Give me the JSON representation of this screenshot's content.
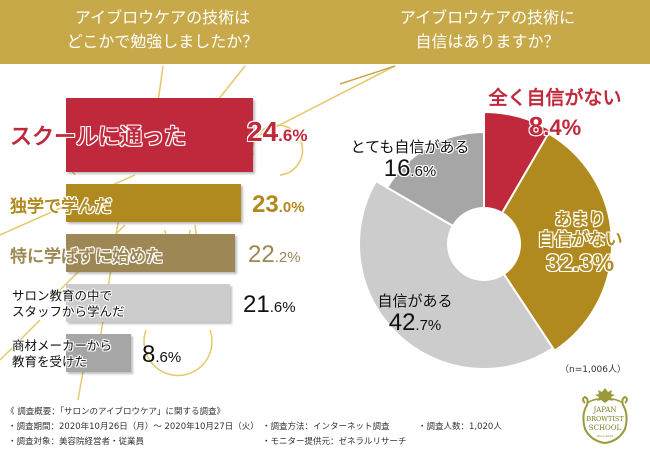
{
  "header": {
    "q1_line1": "アイブロウケアの技術は",
    "q1_line2": "どこかで勉強しましたか？",
    "q2_line1": "アイブロウケアの技術に",
    "q2_line2": "自信はありますか？"
  },
  "colors": {
    "header": "#c8a94a",
    "red": "#c0283b",
    "gold": "#b08a1e",
    "khaki": "#9c8755",
    "light_gray": "#cccccc",
    "mid_gray": "#a6a6a6",
    "deco_line": "#e2c35a"
  },
  "chart_data": [
    {
      "type": "bar",
      "orientation": "horizontal",
      "title": "アイブロウケアの技術はどこかで勉強しましたか？",
      "categories": [
        "スクールに通った",
        "独学で学んだ",
        "特に学ばずに始めた",
        "サロン教育の中でスタッフから学んだ",
        "商材メーカーから教育を受けた"
      ],
      "values": [
        24.6,
        23.0,
        22.2,
        21.6,
        8.6
      ],
      "unit": "%",
      "labels": [
        {
          "line1": "スクールに通った",
          "int": "24",
          "dec": ".6%"
        },
        {
          "line1": "独学で学んだ",
          "int": "23",
          "dec": ".0%"
        },
        {
          "line1": "特に学ばずに始めた",
          "int": "22",
          "dec": ".2%"
        },
        {
          "line1": "サロン教育の中で",
          "line2": "スタッフから学んだ",
          "int": "21",
          "dec": ".6%"
        },
        {
          "line1": "商材メーカーから",
          "line2": "教育を受けた",
          "int": "8",
          "dec": ".6%"
        }
      ]
    },
    {
      "type": "pie",
      "donut": true,
      "title": "アイブロウケアの技術に自信はありますか？",
      "categories": [
        "全く自信がない",
        "あまり自信がない",
        "自信がある",
        "とても自信がある"
      ],
      "values": [
        8.4,
        32.3,
        42.7,
        16.6
      ],
      "unit": "%",
      "labels": [
        {
          "line1": "全く自信がない",
          "int": "8",
          "dec": ".4%"
        },
        {
          "line1": "あまり",
          "line2": "自信がない",
          "int": "32",
          "dec": ".3%"
        },
        {
          "line1": "自信がある",
          "int": "42",
          "dec": ".7%"
        },
        {
          "line1": "とても自信がある",
          "int": "16",
          "dec": ".6%"
        }
      ],
      "sample": "（n=1,006人）"
    }
  ],
  "footer": {
    "title": "《 調査概要：「サロンのアイブロウケア」に関する調査》",
    "period": "・調査期間：2020年10月26日（月）～ 2020年10月27日（火）",
    "target": "・調査対象：美容院経営者・従業員",
    "method": "・調査方法：インターネット調査",
    "provider": "・モニター提供元：ゼネラルリサーチ",
    "count": "・調査人数：1,020人"
  },
  "logo": {
    "line1": "JAPAN",
    "line2": "BROWTIST",
    "line3": "SCHOOL",
    "line4": "since 2015"
  }
}
